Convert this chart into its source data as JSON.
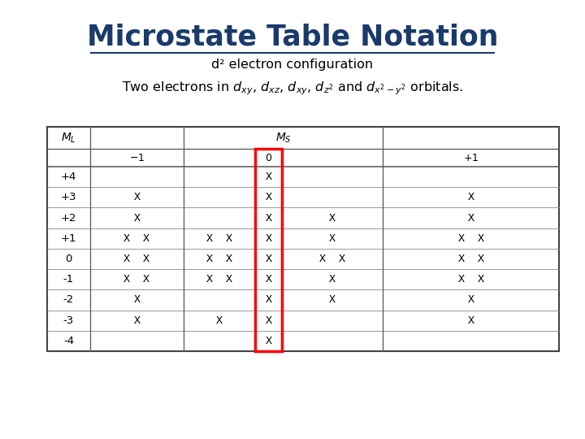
{
  "title": "Microstate Table Notation",
  "subtitle": "d² electron configuration",
  "bg_color": "#ffffff",
  "title_color": "#1a3a6b",
  "ml_values": [
    "+4",
    "+3",
    "+2",
    "+1",
    "0",
    "-1",
    "-2",
    "-3",
    "-4"
  ],
  "ms_minus1": [
    "",
    "X",
    "X",
    "X  X",
    "X  X",
    "X  X",
    "X",
    "X",
    ""
  ],
  "ms_0_left": [
    "",
    "",
    "",
    "X  X",
    "X  X",
    "X  X",
    "",
    "X",
    ""
  ],
  "ms_0_mid": [
    "X",
    "X",
    "X",
    "X",
    "X",
    "X",
    "X",
    "X",
    "X"
  ],
  "ms_0_right": [
    "",
    "",
    "X",
    "X",
    "X  X",
    "X",
    "X",
    "",
    ""
  ],
  "ms_plus1": [
    "",
    "X",
    "X",
    "X  X",
    "X  X",
    "X  X",
    "X",
    "X",
    ""
  ]
}
